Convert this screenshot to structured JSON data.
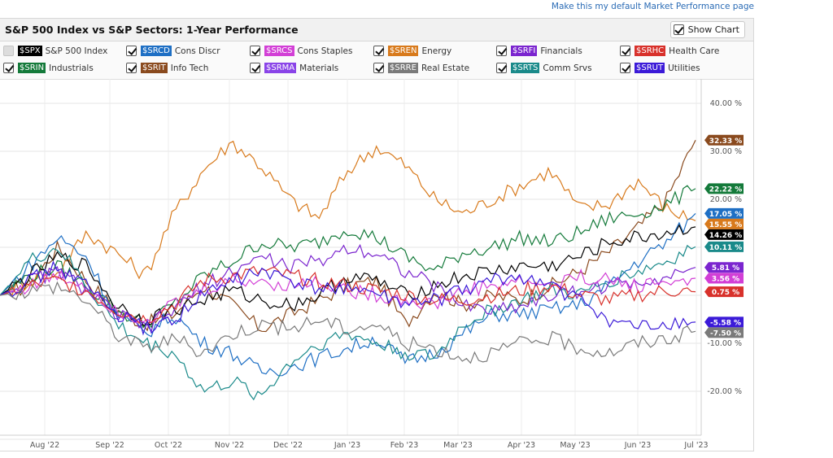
{
  "header": {
    "default_link": "Make this my default Market Performance page"
  },
  "panel": {
    "title": "S&P 500 Index vs S&P Sectors: 1-Year Performance",
    "show_chart_label": "Show Chart",
    "show_chart_checked": true
  },
  "legend": [
    {
      "symbol": "$SPX",
      "name": "S&P 500 Index",
      "color": "#000000",
      "checked": false
    },
    {
      "symbol": "$SRCD",
      "name": "Cons Discr",
      "color": "#1e6fc4",
      "checked": true
    },
    {
      "symbol": "$SRCS",
      "name": "Cons Staples",
      "color": "#d23fd6",
      "checked": true
    },
    {
      "symbol": "$SREN",
      "name": "Energy",
      "color": "#d87a1c",
      "checked": true
    },
    {
      "symbol": "$SRFI",
      "name": "Financials",
      "color": "#7b25cf",
      "checked": true
    },
    {
      "symbol": "$SRHC",
      "name": "Health Care",
      "color": "#d8312b",
      "checked": true
    },
    {
      "symbol": "$SRIN",
      "name": "Industrials",
      "color": "#147a3a",
      "checked": true
    },
    {
      "symbol": "$SRIT",
      "name": "Info Tech",
      "color": "#8a4a1e",
      "checked": true
    },
    {
      "symbol": "$SRMA",
      "name": "Materials",
      "color": "#8a44e8",
      "checked": true
    },
    {
      "symbol": "$SRRE",
      "name": "Real Estate",
      "color": "#7a7a7a",
      "checked": true
    },
    {
      "symbol": "$SRTS",
      "name": "Comm Srvs",
      "color": "#1a8a8a",
      "checked": true
    },
    {
      "symbol": "$SRUT",
      "name": "Utilities",
      "color": "#3b1ad8",
      "checked": true
    }
  ],
  "chart_data": {
    "type": "line",
    "title": "S&P 500 Index vs S&P Sectors: 1-Year Performance",
    "x_tick_labels": [
      "Aug '22",
      "Sep '22",
      "Oct '22",
      "Nov '22",
      "Dec '22",
      "Jan '23",
      "Feb '23",
      "Mar '23",
      "Apr '23",
      "May '23",
      "Jun '23",
      "Jul '23"
    ],
    "y_ticks": [
      40,
      30,
      20,
      10,
      -10,
      -20
    ],
    "y_tick_labels": [
      "40.00 %",
      "30.00 %",
      "20.00 %",
      "10.00 %",
      "-10.00 %",
      "-20.00 %"
    ],
    "ylim": [
      -30,
      45
    ],
    "grid": true,
    "axis_side": "right",
    "series": [
      {
        "name": "Info Tech",
        "color": "#8a4a1e",
        "end_label": "32.33 %",
        "x": [
          0,
          0.5,
          1,
          1.5,
          2,
          2.5,
          3,
          3.5,
          4,
          4.5,
          5,
          5.5,
          6,
          6.5,
          7,
          7.5,
          8,
          8.5,
          9,
          9.5,
          10,
          10.5,
          11,
          11.5,
          12
        ],
        "y": [
          0,
          2,
          10,
          3,
          -3,
          -6,
          -4,
          2,
          -2,
          -7,
          -4,
          -1,
          2,
          3,
          -6,
          1,
          -2,
          0,
          -1,
          2,
          5,
          9,
          14,
          20,
          32.33
        ]
      },
      {
        "name": "Energy",
        "color": "#d87a1c",
        "end_label": "15.55 %",
        "x": [
          0,
          0.5,
          1,
          1.5,
          2,
          2.5,
          3,
          3.5,
          4,
          4.5,
          5,
          5.5,
          6,
          6.5,
          7,
          7.5,
          8,
          8.5,
          9,
          9.5,
          10,
          10.5,
          11,
          11.5,
          12
        ],
        "y": [
          0,
          3,
          5,
          13,
          9,
          4,
          17,
          26,
          32,
          27,
          20,
          16,
          26,
          31,
          27,
          20,
          17,
          20,
          23,
          26,
          18,
          19,
          24,
          18,
          15.55
        ]
      },
      {
        "name": "Industrials",
        "color": "#147a3a",
        "end_label": "22.22 %",
        "x": [
          0,
          0.5,
          1,
          1.5,
          2,
          2.5,
          3,
          3.5,
          4,
          4.5,
          5,
          5.5,
          6,
          6.5,
          7,
          7.5,
          8,
          8.5,
          9,
          9.5,
          10,
          10.5,
          11,
          11.5,
          12
        ],
        "y": [
          0,
          4,
          6,
          2,
          -3,
          -6,
          -2,
          4,
          7,
          11,
          10,
          11,
          14,
          12,
          8,
          5,
          9,
          10,
          12,
          11,
          13,
          16,
          17,
          19,
          22.22
        ]
      },
      {
        "name": "Cons Discr",
        "color": "#1e6fc4",
        "end_label": "17.05 %",
        "x": [
          0,
          0.5,
          1,
          1.5,
          2,
          2.5,
          3,
          3.5,
          4,
          4.5,
          5,
          5.5,
          6,
          6.5,
          7,
          7.5,
          8,
          8.5,
          9,
          9.5,
          10,
          10.5,
          11,
          11.5,
          12
        ],
        "y": [
          0,
          6,
          12,
          8,
          -4,
          -8,
          -4,
          -10,
          -12,
          -16,
          -15,
          -13,
          -11,
          -9,
          -14,
          -12,
          -8,
          -4,
          -4,
          -3,
          -2,
          2,
          7,
          11,
          17.05
        ]
      },
      {
        "name": "S&P 500 Index",
        "color": "#000000",
        "end_label": "14.26 %",
        "x": [
          0,
          0.5,
          1,
          1.5,
          2,
          2.5,
          3,
          3.5,
          4,
          4.5,
          5,
          5.5,
          6,
          6.5,
          7,
          7.5,
          8,
          8.5,
          9,
          9.5,
          10,
          10.5,
          11,
          11.5,
          12
        ],
        "y": [
          0,
          4,
          8,
          6,
          -2,
          -5,
          -3,
          -1,
          1,
          -1,
          -2,
          0,
          4,
          3,
          0,
          2,
          4,
          5,
          6,
          6,
          8,
          11,
          12,
          13,
          14.26
        ]
      },
      {
        "name": "Comm Srvs",
        "color": "#1a8a8a",
        "end_label": "10.11 %",
        "x": [
          0,
          0.5,
          1,
          1.5,
          2,
          2.5,
          3,
          3.5,
          4,
          4.5,
          5,
          5.5,
          6,
          6.5,
          7,
          7.5,
          8,
          8.5,
          9,
          9.5,
          10,
          10.5,
          11,
          11.5,
          12
        ],
        "y": [
          0,
          7,
          10,
          2,
          -6,
          -10,
          -12,
          -20,
          -18,
          -21,
          -14,
          -10,
          -8,
          -10,
          -12,
          -13,
          -6,
          -3,
          -1,
          1,
          0,
          3,
          5,
          7,
          10.11
        ]
      },
      {
        "name": "Financials",
        "color": "#7b25cf",
        "end_label": "5.81 %",
        "x": [
          0,
          0.5,
          1,
          1.5,
          2,
          2.5,
          3,
          3.5,
          4,
          4.5,
          5,
          5.5,
          6,
          6.5,
          7,
          7.5,
          8,
          8.5,
          9,
          9.5,
          10,
          10.5,
          11,
          11.5,
          12
        ],
        "y": [
          0,
          3,
          5,
          1,
          -4,
          -7,
          -3,
          2,
          5,
          8,
          6,
          7,
          10,
          9,
          5,
          2,
          -2,
          -3,
          -2,
          0,
          1,
          2,
          3,
          4,
          5.81
        ]
      },
      {
        "name": "Cons Staples",
        "color": "#d23fd6",
        "end_label": "3.56 %",
        "x": [
          0,
          0.5,
          1,
          1.5,
          2,
          2.5,
          3,
          3.5,
          4,
          4.5,
          5,
          5.5,
          6,
          6.5,
          7,
          7.5,
          8,
          8.5,
          9,
          9.5,
          10,
          10.5,
          11,
          11.5,
          12
        ],
        "y": [
          0,
          2,
          4,
          2,
          -3,
          -5,
          -2,
          1,
          3,
          3,
          2,
          3,
          1,
          0,
          -1,
          -2,
          1,
          2,
          3,
          2,
          4,
          3,
          2,
          3,
          3.56
        ]
      },
      {
        "name": "Health Care",
        "color": "#d8312b",
        "end_label": "0.75 %",
        "x": [
          0,
          0.5,
          1,
          1.5,
          2,
          2.5,
          3,
          3.5,
          4,
          4.5,
          5,
          5.5,
          6,
          6.5,
          7,
          7.5,
          8,
          8.5,
          9,
          9.5,
          10,
          10.5,
          11,
          11.5,
          12
        ],
        "y": [
          0,
          2,
          3,
          1,
          -3,
          -5,
          -2,
          3,
          4,
          5,
          4,
          3,
          2,
          1,
          0,
          -1,
          -1,
          0,
          1,
          2,
          0,
          -1,
          0,
          1,
          0.75
        ]
      },
      {
        "name": "Utilities",
        "color": "#3b1ad8",
        "end_label": "-5.58 %",
        "x": [
          0,
          0.5,
          1,
          1.5,
          2,
          2.5,
          3,
          3.5,
          4,
          4.5,
          5,
          5.5,
          6,
          6.5,
          7,
          7.5,
          8,
          8.5,
          9,
          9.5,
          10,
          10.5,
          11,
          11.5,
          12
        ],
        "y": [
          0,
          3,
          6,
          2,
          -4,
          -7,
          -5,
          0,
          3,
          5,
          3,
          1,
          2,
          0,
          -2,
          -1,
          1,
          3,
          4,
          2,
          -1,
          -5,
          -7,
          -6,
          -5.58
        ]
      },
      {
        "name": "Real Estate",
        "color": "#7a7a7a",
        "end_label": "-7.50 %",
        "x": [
          0,
          0.5,
          1,
          1.5,
          2,
          2.5,
          3,
          3.5,
          4,
          4.5,
          5,
          5.5,
          6,
          6.5,
          7,
          7.5,
          8,
          8.5,
          9,
          9.5,
          10,
          10.5,
          11,
          11.5,
          12
        ],
        "y": [
          0,
          1,
          2,
          -1,
          -8,
          -11,
          -9,
          -12,
          -8,
          -6,
          -7,
          -5,
          -7,
          -6,
          -10,
          -11,
          -13,
          -12,
          -10,
          -9,
          -11,
          -12,
          -10,
          -9,
          -7.5
        ]
      }
    ]
  }
}
